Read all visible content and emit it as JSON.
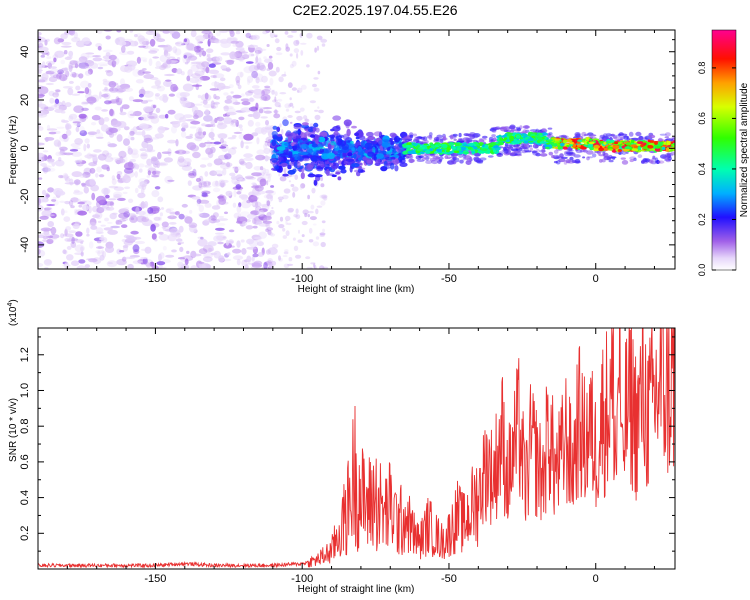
{
  "title": "C2E2.2025.197.04.55.E26",
  "chart_data": [
    {
      "type": "heatmap",
      "xlabel": "Height of straight line (km)",
      "ylabel": "Frequency (Hz)",
      "xlim": [
        -190,
        27
      ],
      "ylim": [
        -50,
        49
      ],
      "xticks": [
        -150,
        -100,
        -50,
        0
      ],
      "yticks": [
        -40,
        -20,
        0,
        20,
        40
      ],
      "colorbar": {
        "label": "Normalized spectral amplitude",
        "ticks": [
          "0.0",
          "0.2",
          "0.4",
          "0.6",
          "0.8"
        ],
        "tick_values": [
          0.0,
          0.2,
          0.4,
          0.6,
          0.8
        ],
        "range": [
          0,
          0.95
        ],
        "colormap": [
          "#ffffff",
          "#c9a8f0",
          "#7a1fd6",
          "#1010ff",
          "#00c8ff",
          "#00ff80",
          "#80ff00",
          "#ffff00",
          "#ff8000",
          "#ff0000",
          "#ff00a0"
        ]
      },
      "features": [
        {
          "x_range": [
            -190,
            -110
          ],
          "freq_range": [
            -50,
            49
          ],
          "amplitude": 0.05,
          "description_color": "#8844e0"
        },
        {
          "x_range": [
            -110,
            -65
          ],
          "freq_range": [
            -15,
            12
          ],
          "amplitude": 0.2
        },
        {
          "x_range": [
            -65,
            27
          ],
          "freq_center": 0,
          "freq_halfwidth": 3,
          "amplitude": 0.5
        },
        {
          "x_range": [
            -15,
            25
          ],
          "freq_center": 1,
          "freq_halfwidth": 1.5,
          "amplitude": 0.9
        }
      ]
    },
    {
      "type": "line",
      "xlabel": "Height of straight line (km)",
      "ylabel": "SNR (10 * v/v)",
      "scale_label": "(x10",
      "scale_exp": "4",
      "scale_close": ")",
      "xlim": [
        -190,
        27
      ],
      "ylim": [
        0,
        1.35
      ],
      "xticks": [
        -150,
        -100,
        -50,
        0
      ],
      "yticks": [
        0.2,
        0.4,
        0.6,
        0.8,
        1.0,
        1.2
      ],
      "ytick_labels": [
        "0.2",
        "0.4",
        "0.6",
        "0.8",
        "1.0",
        "1.2"
      ],
      "color": "#e83030",
      "series": [
        {
          "x": [
            -190,
            -180,
            -170,
            -160,
            -150,
            -140,
            -130,
            -120,
            -110,
            -100,
            -95,
            -90,
            -85,
            -82,
            -80,
            -78,
            -75,
            -72,
            -70,
            -67,
            -65,
            -62,
            -60,
            -57,
            -55,
            -52,
            -50,
            -47,
            -45,
            -42,
            -40,
            -37,
            -35,
            -32,
            -30,
            -28,
            -26,
            -24,
            -22,
            -20,
            -18,
            -16,
            -14,
            -12,
            -10,
            -8,
            -6,
            -4,
            -2,
            0,
            2,
            4,
            6,
            7,
            8,
            9,
            10,
            12,
            14,
            16,
            18,
            20,
            22,
            24,
            26
          ],
          "y": [
            0.02,
            0.02,
            0.02,
            0.02,
            0.02,
            0.03,
            0.02,
            0.02,
            0.02,
            0.03,
            0.05,
            0.1,
            0.3,
            0.55,
            0.4,
            0.35,
            0.4,
            0.3,
            0.35,
            0.25,
            0.3,
            0.2,
            0.15,
            0.25,
            0.2,
            0.15,
            0.2,
            0.3,
            0.25,
            0.35,
            0.4,
            0.6,
            0.5,
            0.75,
            0.5,
            0.65,
            0.8,
            0.45,
            0.7,
            0.6,
            0.5,
            0.8,
            0.55,
            0.6,
            0.75,
            0.55,
            0.85,
            0.7,
            0.8,
            0.65,
            0.85,
            0.9,
            1.0,
            0.55,
            1.35,
            0.5,
            0.85,
            0.95,
            0.8,
            1.0,
            0.85,
            0.95,
            1.05,
            1.0,
            1.05
          ]
        }
      ]
    }
  ]
}
